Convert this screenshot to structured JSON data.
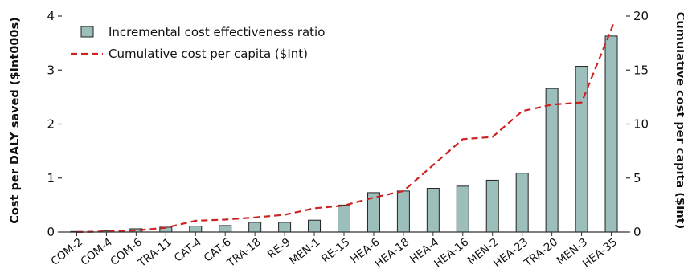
{
  "chart_data": {
    "type": "bar",
    "categories": [
      "COM-2",
      "COM-4",
      "COM-6",
      "TRA-11",
      "CAT-4",
      "CAT-6",
      "TRA-18",
      "RE-9",
      "MEN-1",
      "RE-15",
      "HEA-6",
      "HEA-18",
      "HEA-4",
      "HEA-16",
      "MEN-2",
      "HEA-23",
      "TRA-20",
      "MEN-3",
      "HEA-35"
    ],
    "series": [
      {
        "name": "Incremental cost effectiveness ratio",
        "type": "bar",
        "axis": "left",
        "color": "#9dbfbc",
        "values": [
          0.01,
          0.02,
          0.06,
          0.09,
          0.11,
          0.12,
          0.18,
          0.18,
          0.22,
          0.5,
          0.73,
          0.76,
          0.81,
          0.85,
          0.96,
          1.09,
          2.66,
          3.07,
          3.63
        ]
      },
      {
        "name": "Cumulative cost per capita ($Int)",
        "type": "line",
        "style": "dashed",
        "axis": "right",
        "color": "#cc2222",
        "values": [
          0,
          0.05,
          0.15,
          0.4,
          1.05,
          1.15,
          1.35,
          1.6,
          2.2,
          2.45,
          3.2,
          3.8,
          6.2,
          8.6,
          8.8,
          11.2,
          11.8,
          12,
          19.5
        ]
      }
    ],
    "ylabel": "Cost per DALY saved ($Int000s)",
    "ylabel_right": "Cumulative cost per capita ($Int)",
    "ylim": [
      0,
      4
    ],
    "ylim_right": [
      0,
      20
    ],
    "yticks": [
      "0",
      "1",
      "2",
      "3",
      "4"
    ],
    "yticks_right": [
      "0",
      "5",
      "10",
      "15",
      "20"
    ],
    "grid": false,
    "legend_position": "top-left"
  }
}
